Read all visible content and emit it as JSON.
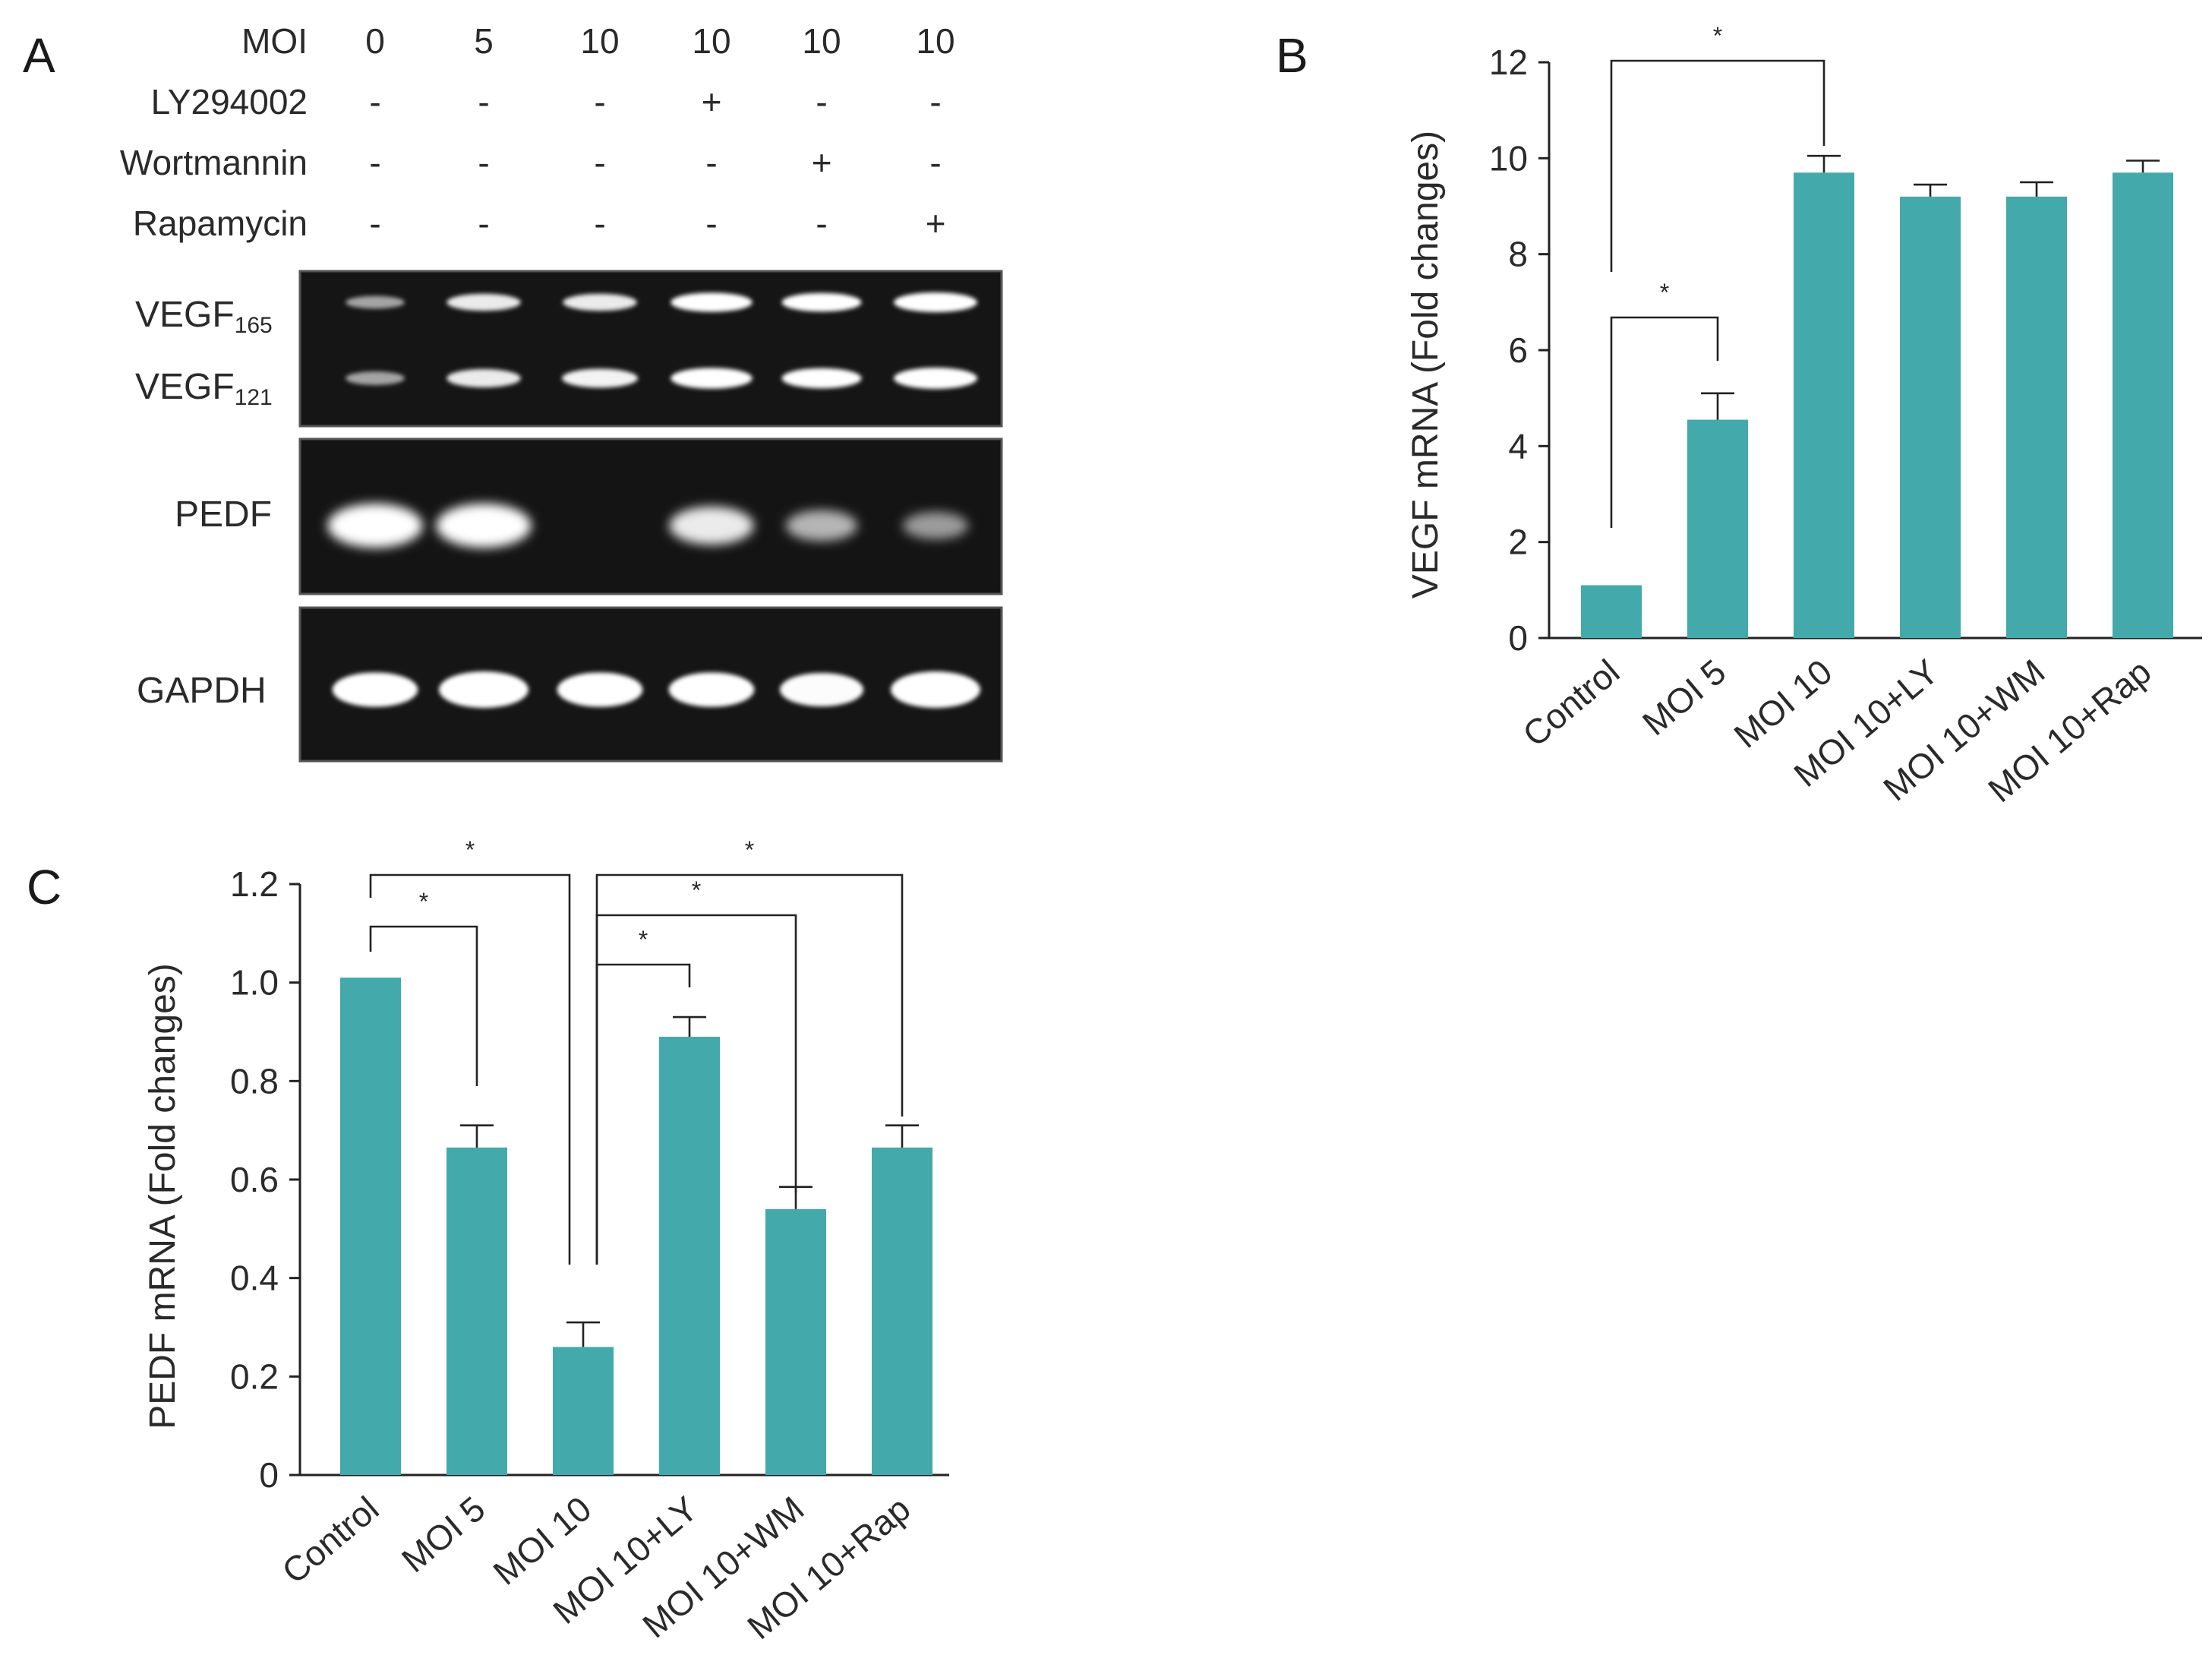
{
  "panels": {
    "a": {
      "letter": "A"
    },
    "b": {
      "letter": "B"
    },
    "c": {
      "letter": "C"
    }
  },
  "blot": {
    "conditions": [
      {
        "label": "MOI",
        "values": [
          "0",
          "5",
          "10",
          "10",
          "10",
          "10"
        ]
      },
      {
        "label": "LY294002",
        "values": [
          "-",
          "-",
          "-",
          "+",
          "-",
          "-"
        ]
      },
      {
        "label": "Wortmannin",
        "values": [
          "-",
          "-",
          "-",
          "-",
          "+",
          "-"
        ]
      },
      {
        "label": "Rapamycin",
        "values": [
          "-",
          "-",
          "-",
          "-",
          "-",
          "+"
        ]
      }
    ],
    "gel_labels": {
      "vegf165_main": "VEGF",
      "vegf165_sub": "165",
      "vegf121_main": "VEGF",
      "vegf121_sub": "121",
      "pedf": "PEDF",
      "gapdh": "GAPDH"
    },
    "band_intensity": {
      "vegf165": [
        0.35,
        0.75,
        0.75,
        0.95,
        0.9,
        1.0
      ],
      "vegf121": [
        0.35,
        0.75,
        0.8,
        0.95,
        0.9,
        1.0
      ],
      "pedf": [
        1.0,
        1.0,
        0.0,
        0.75,
        0.45,
        0.3
      ],
      "gapdh": [
        0.9,
        1.0,
        0.9,
        0.9,
        0.85,
        1.0
      ]
    }
  },
  "chart_data": [
    {
      "type": "bar",
      "title": "",
      "xlabel": "",
      "ylabel": "VEGF mRNA (Fold changes)",
      "ylim": [
        0,
        12
      ],
      "yticks": [
        "0",
        "2",
        "4",
        "6",
        "8",
        "10",
        "12"
      ],
      "categories": [
        "Control",
        "MOI 5",
        "MOI 10",
        "MOI 10+LY",
        "MOI 10+WM",
        "MOI 10+Rap"
      ],
      "values": [
        1.1,
        4.55,
        9.7,
        9.2,
        9.2,
        9.7
      ],
      "errors": [
        0,
        0.55,
        0.35,
        0.25,
        0.3,
        0.25
      ],
      "color": "#43a9aa",
      "significance": [
        {
          "from": 0,
          "to": 2,
          "label": "*"
        },
        {
          "from": 0,
          "to": 1,
          "label": "*"
        }
      ]
    },
    {
      "type": "bar",
      "title": "",
      "xlabel": "",
      "ylabel": "PEDF mRNA (Fold changes)",
      "ylim": [
        0,
        1.2
      ],
      "yticks": [
        "0",
        "0.2",
        "0.4",
        "0.6",
        "0.8",
        "1.0",
        "1.2"
      ],
      "categories": [
        "Control",
        "MOI 5",
        "MOI 10",
        "MOI 10+LY",
        "MOI 10+WM",
        "MOI 10+Rap"
      ],
      "values": [
        1.01,
        0.665,
        0.26,
        0.89,
        0.54,
        0.665
      ],
      "errors": [
        0,
        0.045,
        0.05,
        0.04,
        0.045,
        0.045
      ],
      "color": "#43a9aa",
      "significance": [
        {
          "from": 0,
          "to": 2,
          "label": "*"
        },
        {
          "from": 0,
          "to": 1,
          "label": "*"
        },
        {
          "from": 2,
          "to": 5,
          "label": "*"
        },
        {
          "from": 2,
          "to": 4,
          "label": "*"
        },
        {
          "from": 2,
          "to": 3,
          "label": "*"
        }
      ]
    }
  ]
}
